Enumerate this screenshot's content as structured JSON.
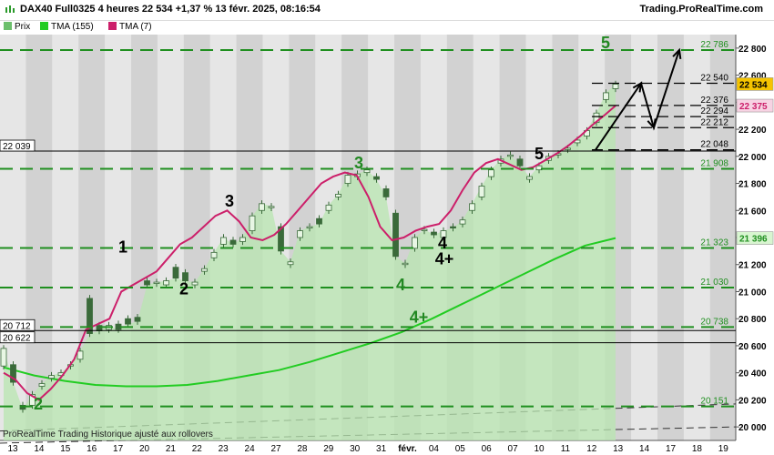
{
  "header": {
    "title": "DAX40 Full0325 4 heures 22 534 +1,37 % 13 févr. 2025, 08:16:54",
    "site": "Trading.ProRealTime.com"
  },
  "legend": [
    {
      "label": "Prix",
      "color": "#6cbf6c"
    },
    {
      "label": "TMA (155)",
      "color": "#22cc22"
    },
    {
      "label": "TMA (7)",
      "color": "#cc1f6a"
    }
  ],
  "footer_text": "ProRealTime Trading  Historique ajusté aux rollovers",
  "price_badges": {
    "current": "22 534",
    "tma7": "22 375",
    "tma155": "21 396"
  },
  "chart_data": {
    "type": "candlestick",
    "instrument": "DAX40 Full0325",
    "timeframe": "4 heures",
    "ylim": [
      19900,
      22900
    ],
    "y_ticks": [
      20000,
      20200,
      20400,
      20600,
      20800,
      21000,
      21200,
      21400,
      21600,
      21800,
      22000,
      22200,
      22400,
      22600,
      22800
    ],
    "x_ticks": [
      "13",
      "14",
      "15",
      "16",
      "17",
      "20",
      "21",
      "22",
      "23",
      "24",
      "27",
      "28",
      "29",
      "30",
      "31",
      "févr.",
      "04",
      "05",
      "06",
      "07",
      "10",
      "11",
      "12",
      "13",
      "14",
      "17",
      "18",
      "19"
    ],
    "price_path": [
      [
        20450,
        20580
      ],
      [
        20460,
        20330
      ],
      [
        20160,
        20130
      ],
      [
        20160,
        20240
      ],
      [
        20300,
        20320
      ],
      [
        20360,
        20380
      ],
      [
        20380,
        20400
      ],
      [
        20450,
        20460
      ],
      [
        20500,
        20560
      ],
      [
        20950,
        20690
      ],
      [
        20750,
        20710
      ],
      [
        20720,
        20750
      ],
      [
        20760,
        20720
      ],
      [
        20800,
        20760
      ],
      [
        20810,
        20780
      ],
      [
        21080,
        21050
      ],
      [
        21060,
        21070
      ],
      [
        21050,
        21080
      ],
      [
        21180,
        21100
      ],
      [
        21140,
        21080
      ],
      [
        21050,
        21070
      ],
      [
        21150,
        21170
      ],
      [
        21250,
        21290
      ],
      [
        21350,
        21400
      ],
      [
        21380,
        21350
      ],
      [
        21370,
        21400
      ],
      [
        21450,
        21560
      ],
      [
        21600,
        21650
      ],
      [
        21620,
        21630
      ],
      [
        21480,
        21300
      ],
      [
        21200,
        21220
      ],
      [
        21400,
        21450
      ],
      [
        21470,
        21480
      ],
      [
        21540,
        21500
      ],
      [
        21600,
        21640
      ],
      [
        21700,
        21720
      ],
      [
        21800,
        21860
      ],
      [
        21850,
        21870
      ],
      [
        21880,
        21900
      ],
      [
        21850,
        21830
      ],
      [
        21760,
        21700
      ],
      [
        21580,
        21260
      ],
      [
        21200,
        21210
      ],
      [
        21320,
        21400
      ],
      [
        21450,
        21460
      ],
      [
        21440,
        21420
      ],
      [
        21400,
        21450
      ],
      [
        21480,
        21470
      ],
      [
        21500,
        21530
      ],
      [
        21600,
        21650
      ],
      [
        21700,
        21780
      ],
      [
        21850,
        21900
      ],
      [
        21950,
        21980
      ],
      [
        22000,
        22010
      ],
      [
        21980,
        21930
      ],
      [
        21830,
        21850
      ],
      [
        21900,
        21930
      ],
      [
        21970,
        22000
      ],
      [
        22010,
        22020
      ],
      [
        22050,
        22060
      ],
      [
        22100,
        22120
      ],
      [
        22150,
        22190
      ],
      [
        22250,
        22320
      ],
      [
        22420,
        22470
      ],
      [
        22500,
        22534
      ]
    ],
    "ma_tma155": [
      20440,
      20380,
      20340,
      20310,
      20300,
      20300,
      20310,
      20340,
      20380,
      20420,
      20480,
      20550,
      20620,
      20700,
      20800,
      20910,
      21020,
      21130,
      21240,
      21340,
      21396
    ],
    "ma_tma7": [
      20400,
      20350,
      20250,
      20200,
      20280,
      20380,
      20500,
      20720,
      20760,
      20800,
      21000,
      21050,
      21100,
      21150,
      21250,
      21350,
      21400,
      21480,
      21560,
      21600,
      21520,
      21400,
      21380,
      21420,
      21500,
      21600,
      21700,
      21800,
      21850,
      21880,
      21860,
      21700,
      21480,
      21380,
      21400,
      21450,
      21480,
      21500,
      21600,
      21750,
      21880,
      21950,
      21980,
      21940,
      21900,
      21920,
      21970,
      22020,
      22080,
      22150,
      22230,
      22300,
      22375
    ],
    "horizontal_levels_green": [
      "22 786",
      "21 908",
      "21 323",
      "21 030",
      "20 738",
      "20 151"
    ],
    "horizontal_levels_black": [
      "22 540",
      "22 376",
      "22 294",
      "22 212",
      "22 048"
    ],
    "support_lines": [
      "22 039",
      "20 712",
      "20 622"
    ],
    "wave_labels": [
      {
        "text": "1",
        "color": "#000000"
      },
      {
        "text": "2",
        "color": "#000000"
      },
      {
        "text": "3",
        "color": "#000000"
      },
      {
        "text": "3",
        "color": "#228822"
      },
      {
        "text": "4",
        "color": "#228822"
      },
      {
        "text": "4+",
        "color": "#228822"
      },
      {
        "text": "4",
        "color": "#000000"
      },
      {
        "text": "4+",
        "color": "#000000"
      },
      {
        "text": "5",
        "color": "#000000"
      },
      {
        "text": "5",
        "color": "#228822"
      },
      {
        "text": "2",
        "color": "#228822"
      }
    ]
  }
}
